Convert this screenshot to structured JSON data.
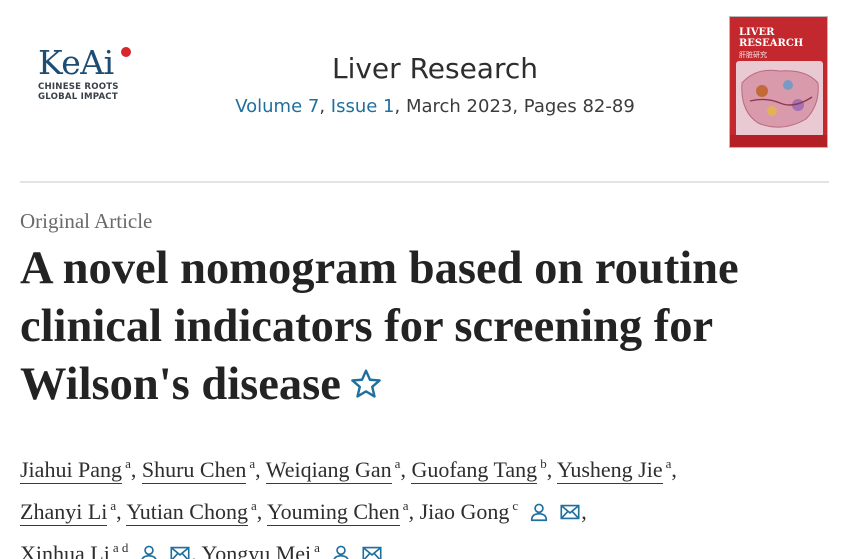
{
  "publisher": {
    "logo_text": "KeAi",
    "tagline_lines": [
      "CHINESE ROOTS",
      "GLOBAL IMPACT"
    ]
  },
  "journal": {
    "title": "Liver Research",
    "volume_link": "Volume 7",
    "issue_link": "Issue 1",
    "date_pages": ", March 2023, Pages 82-89"
  },
  "cover": {
    "title_line1": "LIVER",
    "title_line2": "RESEARCH",
    "subtitle": "肝脏研究",
    "background_color": "#c2282d"
  },
  "article": {
    "type": "Original Article",
    "title": "A novel nomogram based on routine clinical indicators for screening for Wilson's disease"
  },
  "authors": [
    {
      "name": "Jiahui Pang",
      "affil": "a"
    },
    {
      "name": "Shuru Chen",
      "affil": "a"
    },
    {
      "name": "Weiqiang Gan",
      "affil": "a"
    },
    {
      "name": "Guofang Tang",
      "affil": "b"
    },
    {
      "name": "Yusheng Jie",
      "affil": "a"
    },
    {
      "name": "Zhanyi Li",
      "affil": "a"
    },
    {
      "name": "Yutian Chong",
      "affil": "a"
    },
    {
      "name": "Youming Chen",
      "affil": "a"
    },
    {
      "name": "Jiao Gong",
      "affil": "c"
    },
    {
      "name": "Xinhua Li",
      "affil": "a d"
    },
    {
      "name": "Yongyu Mei",
      "affil": "a"
    }
  ],
  "icons": {
    "star": "star-outline-icon",
    "person": "person-icon",
    "envelope": "envelope-icon",
    "accent_color": "#1f6f9f"
  }
}
